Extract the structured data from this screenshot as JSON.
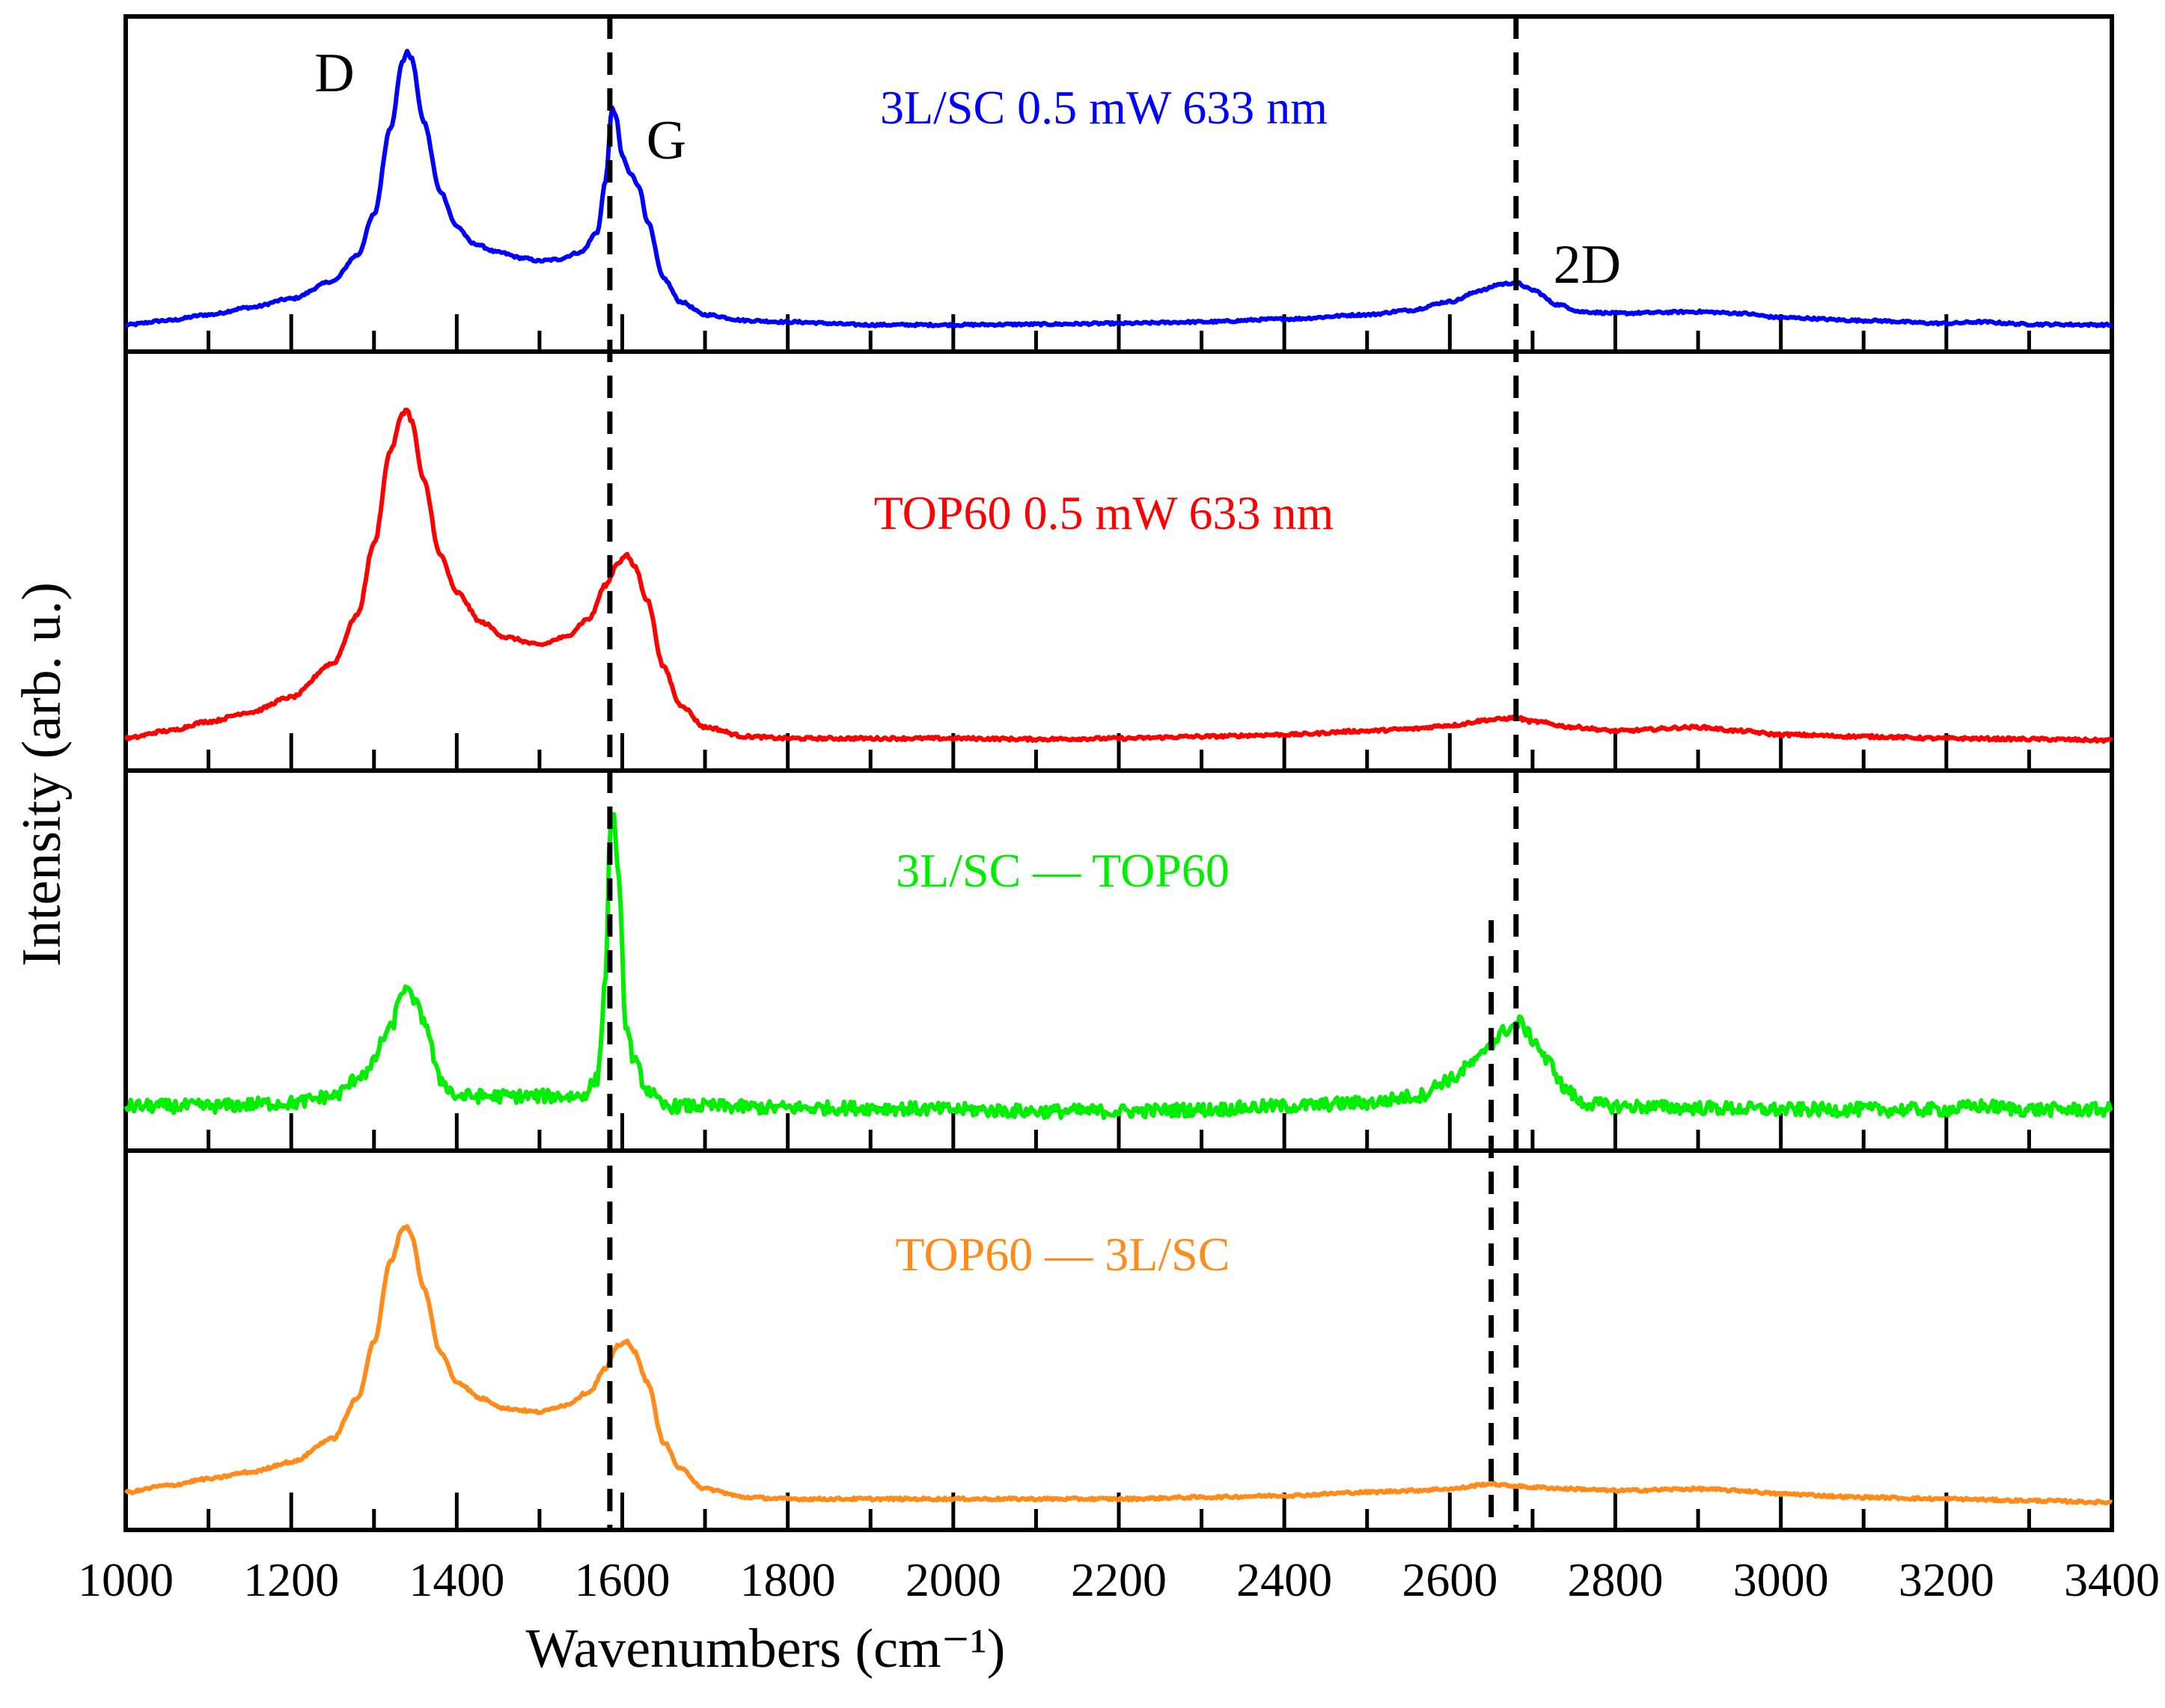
{
  "chart_data": {
    "type": "line",
    "layout": "stacked-panels",
    "xlabel": "Wavenumbers (cm⁻¹)",
    "ylabel": "Intensity (arb. u.)",
    "xlim": [
      1000,
      3400
    ],
    "xticks": [
      1000,
      1200,
      1400,
      1600,
      1800,
      2000,
      2200,
      2400,
      2600,
      2800,
      3000,
      3200,
      3400
    ],
    "minor_tick_step": 100,
    "peak_labels": [
      {
        "text": "D",
        "x": 1340,
        "panel": 0
      },
      {
        "text": "G",
        "x": 1590,
        "panel": 0
      },
      {
        "text": "2D",
        "x": 2680,
        "panel": 0
      }
    ],
    "reference_lines": [
      {
        "x": 1585,
        "style": "dashed",
        "panels": "all"
      },
      {
        "x": 2680,
        "style": "dashed",
        "panels": "all"
      },
      {
        "x": 2650,
        "style": "dashed",
        "panels": [
          2,
          3
        ]
      }
    ],
    "series": [
      {
        "name": "3L/SC 0.5 mW 633 nm",
        "color": "#0000ff",
        "noise": 0.004,
        "points": [
          [
            1000,
            0.02
          ],
          [
            1050,
            0.035
          ],
          [
            1100,
            0.055
          ],
          [
            1150,
            0.08
          ],
          [
            1200,
            0.11
          ],
          [
            1250,
            0.17
          ],
          [
            1280,
            0.26
          ],
          [
            1300,
            0.4
          ],
          [
            1320,
            0.7
          ],
          [
            1335,
            0.93
          ],
          [
            1340,
            0.96
          ],
          [
            1345,
            0.94
          ],
          [
            1360,
            0.72
          ],
          [
            1380,
            0.48
          ],
          [
            1400,
            0.36
          ],
          [
            1420,
            0.3
          ],
          [
            1450,
            0.27
          ],
          [
            1480,
            0.25
          ],
          [
            1500,
            0.24
          ],
          [
            1520,
            0.245
          ],
          [
            1550,
            0.27
          ],
          [
            1570,
            0.34
          ],
          [
            1580,
            0.52
          ],
          [
            1588,
            0.77
          ],
          [
            1592,
            0.74
          ],
          [
            1600,
            0.6
          ],
          [
            1610,
            0.54
          ],
          [
            1620,
            0.5
          ],
          [
            1630,
            0.38
          ],
          [
            1650,
            0.18
          ],
          [
            1670,
            0.1
          ],
          [
            1700,
            0.055
          ],
          [
            1750,
            0.035
          ],
          [
            1800,
            0.03
          ],
          [
            1900,
            0.02
          ],
          [
            2000,
            0.02
          ],
          [
            2100,
            0.022
          ],
          [
            2200,
            0.025
          ],
          [
            2300,
            0.03
          ],
          [
            2400,
            0.04
          ],
          [
            2500,
            0.055
          ],
          [
            2550,
            0.07
          ],
          [
            2600,
            0.1
          ],
          [
            2640,
            0.14
          ],
          [
            2660,
            0.16
          ],
          [
            2680,
            0.165
          ],
          [
            2700,
            0.14
          ],
          [
            2730,
            0.09
          ],
          [
            2760,
            0.065
          ],
          [
            2800,
            0.06
          ],
          [
            2900,
            0.065
          ],
          [
            2950,
            0.06
          ],
          [
            3000,
            0.045
          ],
          [
            3100,
            0.035
          ],
          [
            3200,
            0.025
          ],
          [
            3240,
            0.03
          ],
          [
            3300,
            0.022
          ],
          [
            3400,
            0.02
          ]
        ]
      },
      {
        "name": "TOP60 0.5 mW 633 nm",
        "color": "#ff0000",
        "noise": 0.004,
        "points": [
          [
            1000,
            0.03
          ],
          [
            1050,
            0.05
          ],
          [
            1100,
            0.075
          ],
          [
            1150,
            0.1
          ],
          [
            1200,
            0.14
          ],
          [
            1250,
            0.23
          ],
          [
            1280,
            0.36
          ],
          [
            1300,
            0.55
          ],
          [
            1320,
            0.8
          ],
          [
            1335,
            0.9
          ],
          [
            1340,
            0.91
          ],
          [
            1345,
            0.88
          ],
          [
            1360,
            0.72
          ],
          [
            1380,
            0.52
          ],
          [
            1400,
            0.42
          ],
          [
            1430,
            0.34
          ],
          [
            1460,
            0.3
          ],
          [
            1500,
            0.28
          ],
          [
            1530,
            0.3
          ],
          [
            1560,
            0.35
          ],
          [
            1580,
            0.44
          ],
          [
            1595,
            0.5
          ],
          [
            1605,
            0.52
          ],
          [
            1615,
            0.49
          ],
          [
            1630,
            0.4
          ],
          [
            1650,
            0.22
          ],
          [
            1670,
            0.12
          ],
          [
            1700,
            0.06
          ],
          [
            1750,
            0.035
          ],
          [
            1800,
            0.03
          ],
          [
            1900,
            0.03
          ],
          [
            2000,
            0.03
          ],
          [
            2100,
            0.028
          ],
          [
            2200,
            0.03
          ],
          [
            2300,
            0.035
          ],
          [
            2400,
            0.04
          ],
          [
            2500,
            0.05
          ],
          [
            2550,
            0.055
          ],
          [
            2600,
            0.065
          ],
          [
            2650,
            0.08
          ],
          [
            2680,
            0.085
          ],
          [
            2700,
            0.075
          ],
          [
            2750,
            0.06
          ],
          [
            2800,
            0.05
          ],
          [
            2900,
            0.06
          ],
          [
            2950,
            0.05
          ],
          [
            3000,
            0.04
          ],
          [
            3100,
            0.035
          ],
          [
            3200,
            0.03
          ],
          [
            3300,
            0.028
          ],
          [
            3400,
            0.025
          ]
        ]
      },
      {
        "name": "3L/SC — TOP60",
        "color": "#00ee00",
        "noise": 0.02,
        "points": [
          [
            1000,
            0.07
          ],
          [
            1100,
            0.07
          ],
          [
            1200,
            0.08
          ],
          [
            1250,
            0.1
          ],
          [
            1290,
            0.17
          ],
          [
            1320,
            0.3
          ],
          [
            1335,
            0.42
          ],
          [
            1345,
            0.4
          ],
          [
            1360,
            0.33
          ],
          [
            1380,
            0.15
          ],
          [
            1400,
            0.1
          ],
          [
            1450,
            0.1
          ],
          [
            1500,
            0.1
          ],
          [
            1550,
            0.1
          ],
          [
            1570,
            0.15
          ],
          [
            1580,
            0.45
          ],
          [
            1585,
            0.88
          ],
          [
            1590,
            0.95
          ],
          [
            1595,
            0.75
          ],
          [
            1605,
            0.3
          ],
          [
            1615,
            0.2
          ],
          [
            1630,
            0.12
          ],
          [
            1650,
            0.07
          ],
          [
            1700,
            0.07
          ],
          [
            1800,
            0.065
          ],
          [
            1900,
            0.065
          ],
          [
            2000,
            0.06
          ],
          [
            2100,
            0.055
          ],
          [
            2200,
            0.055
          ],
          [
            2300,
            0.06
          ],
          [
            2400,
            0.07
          ],
          [
            2500,
            0.08
          ],
          [
            2560,
            0.1
          ],
          [
            2600,
            0.15
          ],
          [
            2630,
            0.2
          ],
          [
            2650,
            0.26
          ],
          [
            2670,
            0.3
          ],
          [
            2685,
            0.32
          ],
          [
            2700,
            0.27
          ],
          [
            2720,
            0.2
          ],
          [
            2740,
            0.12
          ],
          [
            2760,
            0.08
          ],
          [
            2800,
            0.07
          ],
          [
            2900,
            0.065
          ],
          [
            3000,
            0.06
          ],
          [
            3100,
            0.06
          ],
          [
            3200,
            0.06
          ],
          [
            3240,
            0.07
          ],
          [
            3300,
            0.06
          ],
          [
            3400,
            0.06
          ]
        ]
      },
      {
        "name": "TOP60 — 3L/SC",
        "color": "#ff8c1a",
        "noise": 0.004,
        "points": [
          [
            1000,
            0.05
          ],
          [
            1050,
            0.07
          ],
          [
            1100,
            0.09
          ],
          [
            1150,
            0.11
          ],
          [
            1200,
            0.14
          ],
          [
            1250,
            0.21
          ],
          [
            1280,
            0.33
          ],
          [
            1300,
            0.5
          ],
          [
            1320,
            0.74
          ],
          [
            1335,
            0.84
          ],
          [
            1340,
            0.845
          ],
          [
            1345,
            0.82
          ],
          [
            1360,
            0.66
          ],
          [
            1380,
            0.47
          ],
          [
            1400,
            0.38
          ],
          [
            1430,
            0.33
          ],
          [
            1460,
            0.3
          ],
          [
            1500,
            0.29
          ],
          [
            1530,
            0.31
          ],
          [
            1560,
            0.35
          ],
          [
            1580,
            0.42
          ],
          [
            1595,
            0.49
          ],
          [
            1605,
            0.5
          ],
          [
            1615,
            0.47
          ],
          [
            1630,
            0.38
          ],
          [
            1650,
            0.2
          ],
          [
            1670,
            0.12
          ],
          [
            1700,
            0.06
          ],
          [
            1750,
            0.035
          ],
          [
            1800,
            0.03
          ],
          [
            1900,
            0.03
          ],
          [
            2000,
            0.03
          ],
          [
            2100,
            0.03
          ],
          [
            2200,
            0.03
          ],
          [
            2300,
            0.035
          ],
          [
            2400,
            0.04
          ],
          [
            2500,
            0.05
          ],
          [
            2550,
            0.055
          ],
          [
            2600,
            0.06
          ],
          [
            2650,
            0.075
          ],
          [
            2670,
            0.07
          ],
          [
            2700,
            0.065
          ],
          [
            2750,
            0.06
          ],
          [
            2800,
            0.055
          ],
          [
            2900,
            0.06
          ],
          [
            2950,
            0.055
          ],
          [
            3000,
            0.045
          ],
          [
            3100,
            0.035
          ],
          [
            3200,
            0.03
          ],
          [
            3300,
            0.025
          ],
          [
            3400,
            0.02
          ]
        ]
      }
    ]
  }
}
